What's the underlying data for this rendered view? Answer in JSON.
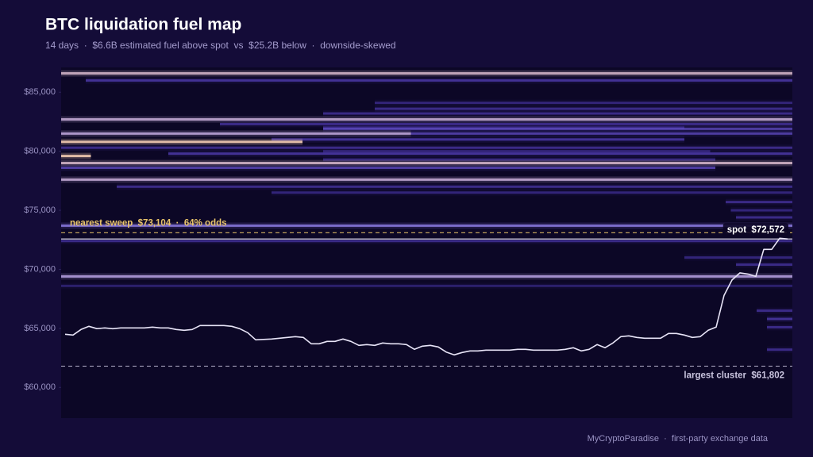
{
  "chart_data": {
    "type": "line",
    "title": "BTC liquidation fuel map",
    "subtitle": "14 days  ·  $6.6B estimated fuel above spot  vs  $25.2B below  ·  downside-skewed",
    "footer": "MyCryptoParadise  ·  first-party exchange data",
    "xlim": [
      0,
      14
    ],
    "ylim": [
      57400,
      87100
    ],
    "yticks": [
      {
        "value": 60000,
        "label": "$60,000"
      },
      {
        "value": 65000,
        "label": "$65,000"
      },
      {
        "value": 70000,
        "label": "$70,000"
      },
      {
        "value": 75000,
        "label": "$75,000"
      },
      {
        "value": 80000,
        "label": "$80,000"
      },
      {
        "value": 85000,
        "label": "$85,000"
      }
    ],
    "series": [
      {
        "name": "BTC price",
        "color": "#e8e4f7",
        "values": [
          64504,
          64437,
          64907,
          65176,
          64980,
          65042,
          64974,
          65042,
          65042,
          65042,
          65042,
          65109,
          65042,
          65042,
          64907,
          64840,
          64907,
          65243,
          65243,
          65243,
          65243,
          65176,
          64974,
          64638,
          64034,
          64067,
          64101,
          64168,
          64235,
          64302,
          64235,
          63698,
          63698,
          63899,
          63899,
          64101,
          63899,
          63563,
          63630,
          63563,
          63765,
          63698,
          63698,
          63630,
          63227,
          63496,
          63563,
          63430,
          63000,
          62758,
          62960,
          63093,
          63093,
          63160,
          63160,
          63160,
          63160,
          63227,
          63227,
          63160,
          63160,
          63160,
          63160,
          63227,
          63362,
          63093,
          63227,
          63630,
          63362,
          63765,
          64302,
          64370,
          64235,
          64168,
          64168,
          64168,
          64571,
          64571,
          64437,
          64235,
          64302,
          64840,
          65109,
          67800,
          69100,
          69700,
          69600,
          69400,
          71694,
          71694,
          72635,
          72572
        ]
      }
    ],
    "colormap": [
      "#2b1f78",
      "#6148d8",
      "#a898ff",
      "#f0c79a"
    ],
    "heatmap": [
      {
        "price": 86600,
        "start": 0,
        "end": 14,
        "weight": 0.85
      },
      {
        "price": 86000,
        "start": 0.4,
        "end": 14,
        "weight": 0.35
      },
      {
        "price": 84100,
        "start": 6,
        "end": 14,
        "weight": 0.25
      },
      {
        "price": 83600,
        "start": 6,
        "end": 14,
        "weight": 0.3
      },
      {
        "price": 83200,
        "start": 5,
        "end": 14,
        "weight": 0.3
      },
      {
        "price": 82700,
        "start": 0,
        "end": 14,
        "weight": 0.8
      },
      {
        "price": 82300,
        "start": 3,
        "end": 14,
        "weight": 0.3
      },
      {
        "price": 82000,
        "start": 5,
        "end": 12,
        "weight": 0.22
      },
      {
        "price": 81900,
        "start": 5,
        "end": 14,
        "weight": 0.4
      },
      {
        "price": 81500,
        "start": 0,
        "end": 6.7,
        "weight": 0.78
      },
      {
        "price": 81500,
        "start": 6.7,
        "end": 14,
        "weight": 0.4
      },
      {
        "price": 81000,
        "start": 4,
        "end": 12,
        "weight": 0.35
      },
      {
        "price": 80800,
        "start": 0,
        "end": 4.6,
        "weight": 0.95
      },
      {
        "price": 80300,
        "start": 0,
        "end": 14,
        "weight": 0.3
      },
      {
        "price": 80000,
        "start": 5,
        "end": 12.5,
        "weight": 0.22
      },
      {
        "price": 79800,
        "start": 2,
        "end": 14,
        "weight": 0.35
      },
      {
        "price": 79600,
        "start": 0,
        "end": 0.5,
        "weight": 0.95
      },
      {
        "price": 79300,
        "start": 5,
        "end": 12.6,
        "weight": 0.25
      },
      {
        "price": 79000,
        "start": 0,
        "end": 14,
        "weight": 0.85
      },
      {
        "price": 78600,
        "start": 0,
        "end": 12.6,
        "weight": 0.4
      },
      {
        "price": 77600,
        "start": 0,
        "end": 14,
        "weight": 0.8
      },
      {
        "price": 77000,
        "start": 1,
        "end": 14,
        "weight": 0.3
      },
      {
        "price": 76500,
        "start": 4,
        "end": 14,
        "weight": 0.25
      },
      {
        "price": 75700,
        "start": 12.8,
        "end": 14,
        "weight": 0.3
      },
      {
        "price": 75000,
        "start": 12.9,
        "end": 14,
        "weight": 0.25
      },
      {
        "price": 74400,
        "start": 13,
        "end": 14,
        "weight": 0.3
      },
      {
        "price": 73700,
        "start": 0,
        "end": 14,
        "weight": 0.6
      },
      {
        "price": 72400,
        "start": 0,
        "end": 14,
        "weight": 0.3
      },
      {
        "price": 71000,
        "start": 12,
        "end": 14,
        "weight": 0.25
      },
      {
        "price": 70400,
        "start": 13,
        "end": 14,
        "weight": 0.3
      },
      {
        "price": 69400,
        "start": 0,
        "end": 14,
        "weight": 0.75
      },
      {
        "price": 68600,
        "start": 0,
        "end": 14,
        "weight": 0.2
      },
      {
        "price": 66500,
        "start": 13.4,
        "end": 14,
        "weight": 0.3
      },
      {
        "price": 65800,
        "start": 13.6,
        "end": 14,
        "weight": 0.35
      },
      {
        "price": 65100,
        "start": 13.6,
        "end": 14,
        "weight": 0.3
      },
      {
        "price": 63200,
        "start": 13.6,
        "end": 14,
        "weight": 0.3
      }
    ],
    "annotations": [
      {
        "label": "nearest sweep  $73,104  ·  64% odds",
        "value": 73104,
        "style": "dashed",
        "color": "#e9c46a",
        "align": "left"
      },
      {
        "label": "spot  $72,572",
        "value": 72572,
        "style": "solid",
        "color": "#ffffff",
        "align": "right-box"
      },
      {
        "label": "largest cluster  $61,802",
        "value": 61802,
        "style": "dashed",
        "color": "#c9c4de",
        "align": "right-below"
      }
    ]
  }
}
